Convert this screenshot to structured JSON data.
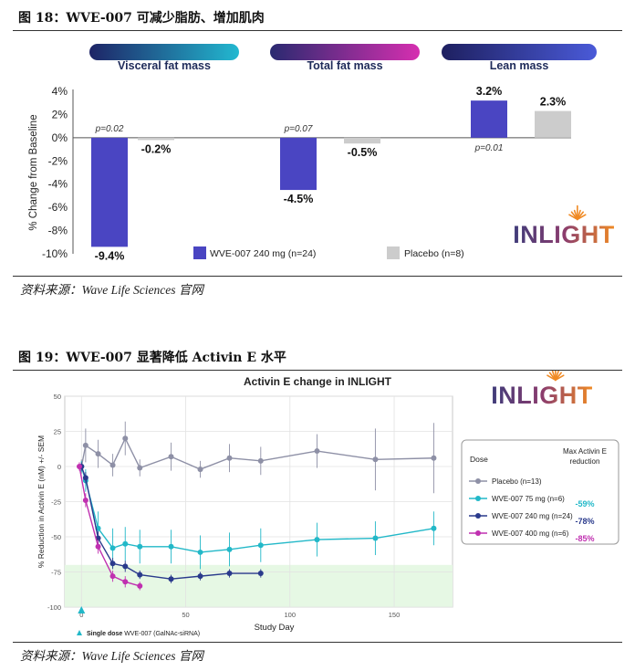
{
  "figure18": {
    "title": "图 18：WVE-007 可减少脂肪、增加肌肉",
    "source": "资料来源：Wave Life Sciences 官网"
  },
  "figure19": {
    "title": "图 19：WVE-007 显著降低 Activin E 水平",
    "source": "资料来源：Wave Life Sciences 官网"
  },
  "colors": {
    "wve": "#4a45c2",
    "placebo": "#cccccc",
    "placebo_line": "#8e90a6",
    "d75": "#22b8c8",
    "d240": "#2a3a8c",
    "d400": "#c030b0",
    "zone": "#e6f8e4",
    "logo_navy": "#3f3c7a",
    "logo_orange": "#f08a24"
  },
  "chart_data": [
    {
      "type": "bar",
      "ylabel": "% Change from Baseline",
      "ylim": [
        -10,
        4
      ],
      "yticks": [
        "4%",
        "2%",
        "0%",
        "-2%",
        "-4%",
        "-6%",
        "-8%",
        "-10%"
      ],
      "categories": [
        "Visceral fat mass",
        "Total fat mass",
        "Lean mass"
      ],
      "series": [
        {
          "name": "WVE-007 240 mg (n=24)",
          "values": [
            -9.4,
            -4.5,
            3.2
          ],
          "labels": [
            "-9.4%",
            "-4.5%",
            "3.2%"
          ],
          "pvalues": [
            "p=0.02",
            "p=0.07",
            "p=0.01"
          ]
        },
        {
          "name": "Placebo (n=8)",
          "values": [
            -0.2,
            -0.5,
            2.3
          ],
          "labels": [
            "-0.2%",
            "-0.5%",
            "2.3%"
          ]
        }
      ],
      "logo": "INLIGHT"
    },
    {
      "type": "line",
      "title": "Activin E change in INLIGHT",
      "xlabel": "Study Day",
      "ylabel": "% Reduction in Activin E (nM) +/- SEM",
      "xlim": [
        -8,
        178
      ],
      "ylim": [
        -100,
        50
      ],
      "xticks": [
        0,
        50,
        100,
        150
      ],
      "yticks": [
        50,
        25,
        0,
        -25,
        -50,
        -75,
        -100
      ],
      "legend_title": "Dose",
      "legend_header": "Max Activin E reduction",
      "footnote_bold": "Single dose",
      "footnote": "WVE-007 (GalNAc-siRNA)",
      "dose_marker_x": 0,
      "zone": [
        -100,
        -70
      ],
      "series": [
        {
          "name": "Placebo (n=13)",
          "max_reduction": "",
          "x": [
            0,
            2,
            8,
            15,
            21,
            28,
            43,
            57,
            71,
            86,
            113,
            141,
            169
          ],
          "y": [
            0,
            15,
            9,
            1,
            20,
            -1,
            7,
            -2,
            6,
            4,
            11,
            5,
            6
          ],
          "err": [
            5,
            12,
            10,
            8,
            12,
            6,
            10,
            6,
            10,
            10,
            12,
            22,
            25
          ]
        },
        {
          "name": "WVE-007 75 mg (n=6)",
          "max_reduction": "-59%",
          "x": [
            0,
            2,
            8,
            15,
            21,
            28,
            43,
            57,
            71,
            86,
            113,
            141,
            169
          ],
          "y": [
            0,
            -10,
            -44,
            -58,
            -55,
            -57,
            -57,
            -61,
            -59,
            -56,
            -52,
            -51,
            -44
          ],
          "err": [
            4,
            8,
            12,
            14,
            12,
            12,
            12,
            12,
            12,
            12,
            12,
            12,
            12
          ]
        },
        {
          "name": "WVE-007 240 mg (n=24)",
          "max_reduction": "-78%",
          "x": [
            0,
            2,
            8,
            15,
            21,
            28,
            43,
            57,
            71,
            86
          ],
          "y": [
            0,
            -8,
            -51,
            -69,
            -71,
            -77,
            -80,
            -78,
            -76,
            -76
          ],
          "err": [
            3,
            4,
            5,
            4,
            4,
            3,
            3,
            3,
            3,
            3
          ]
        },
        {
          "name": "WVE-007 400 mg (n=6)",
          "max_reduction": "-85%",
          "x": [
            -1,
            2,
            8,
            15,
            21,
            28
          ],
          "y": [
            0,
            -24,
            -57,
            -78,
            -82,
            -85
          ],
          "err": [
            3,
            5,
            5,
            4,
            4,
            3
          ]
        }
      ],
      "logo": "INLIGHT"
    }
  ]
}
